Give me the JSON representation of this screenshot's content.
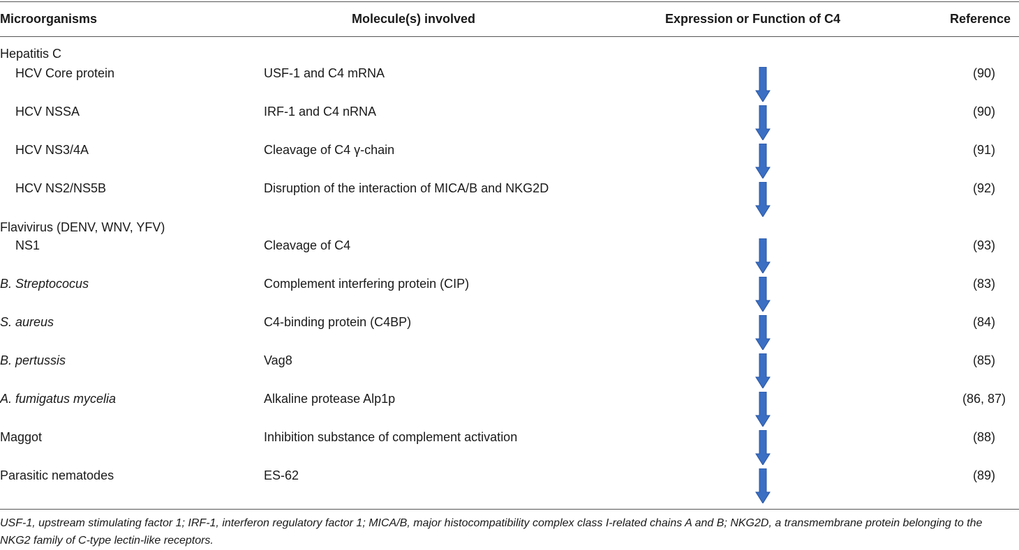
{
  "header": {
    "col1": "Microorganisms",
    "col2": "Molecule(s) involved",
    "col3": "Expression or Function of C4",
    "col4": "Reference"
  },
  "groups": {
    "hcv": "Hepatitis C",
    "flavi": "Flavivirus (DENV, WNV, YFV)"
  },
  "rows": [
    {
      "organism": "HCV Core protein",
      "molecule": "USF-1 and C4 mRNA",
      "effect": "decrease-arrow",
      "reference": "(90)"
    },
    {
      "organism": "HCV NSSA",
      "molecule": "IRF-1 and C4 nRNA",
      "effect": "decrease-arrow",
      "reference": "(90)"
    },
    {
      "organism": "HCV NS3/4A",
      "molecule": "Cleavage of C4 γ-chain",
      "effect": "decrease-arrow",
      "reference": "(91)"
    },
    {
      "organism": "HCV NS2/NS5B",
      "molecule": "Disruption of the interaction of MICA/B and NKG2D",
      "effect": "decrease-arrow",
      "reference": "(92)"
    },
    {
      "organism": "NS1",
      "molecule": "Cleavage of C4",
      "effect": "decrease-arrow",
      "reference": "(93)"
    },
    {
      "organism": "B. Streptococus",
      "molecule": "Complement interfering protein (CIP)",
      "effect": "decrease-arrow",
      "reference": "(83)"
    },
    {
      "organism": "S. aureus",
      "molecule": "C4-binding protein (C4BP)",
      "effect": "decrease-arrow",
      "reference": "(84)"
    },
    {
      "organism": "B. pertussis",
      "molecule": "Vag8",
      "effect": "decrease-arrow",
      "reference": "(85)"
    },
    {
      "organism": "A. fumigatus mycelia",
      "molecule": "Alkaline protease Alp1p",
      "effect": "decrease-arrow",
      "reference": "(86, 87)"
    },
    {
      "organism": "Maggot",
      "molecule": "Inhibition substance of complement activation",
      "effect": "decrease-arrow",
      "reference": "(88)"
    },
    {
      "organism": "Parasitic nematodes",
      "molecule": "ES-62",
      "effect": "decrease-arrow",
      "reference": "(89)"
    }
  ],
  "footnote": "USF-1, upstream stimulating factor 1; IRF-1, interferon regulatory factor 1; MICA/B, major histocompatibility complex class I-related chains A and B; NKG2D, a transmembrane protein belonging to the NKG2 family of C-type lectin-like receptors.",
  "colors": {
    "arrow_fill": "#3a6fc4",
    "arrow_edge": "#2a55a0",
    "rule": "#555555"
  }
}
